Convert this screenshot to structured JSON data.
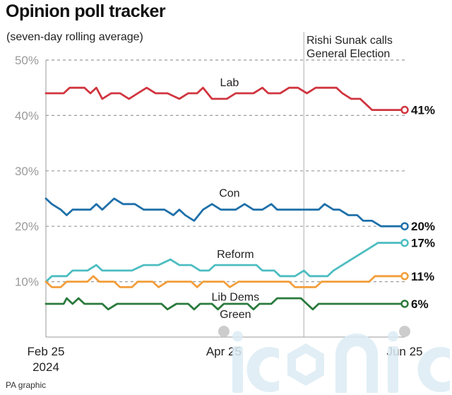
{
  "title": "Opinion poll tracker",
  "subtitle": "(seven-day rolling average)",
  "event_label": [
    "Rishi Sunak calls",
    "General Election"
  ],
  "credit": "PA graphic",
  "watermark": "iconic",
  "colors": {
    "Lab": "#d0353f",
    "Con": "#1f70aa",
    "Reform": "#4dbdc1",
    "Lib Dems": "#f29e3a",
    "Green": "#2a7a3c",
    "grid": "#9a9a9a",
    "ytick": "#9a9a9a",
    "marker": "#cccccc"
  },
  "chart_data": {
    "type": "line",
    "title": "Opinion poll tracker",
    "subtitle": "(seven-day rolling average)",
    "ylim": [
      0,
      50
    ],
    "yticks": [
      10,
      20,
      30,
      40,
      50
    ],
    "ytick_labels": [
      "10%",
      "20%",
      "30%",
      "40%",
      "50%"
    ],
    "x_range": [
      "2024-02-25",
      "2024-06-25"
    ],
    "x_tick_labels": [
      {
        "date": "2024-02-25",
        "lines": [
          "Feb 25",
          "2024"
        ]
      },
      {
        "date": "2024-04-25",
        "lines": [
          "Apr 25"
        ]
      },
      {
        "date": "2024-06-25",
        "lines": [
          "Jun 25"
        ]
      }
    ],
    "event": {
      "date": "2024-05-22",
      "label": "Rishi Sunak calls General Election"
    },
    "grid": true,
    "series": [
      {
        "name": "Lab",
        "final_label": "41%",
        "points": [
          [
            "2024-02-25",
            44
          ],
          [
            "2024-03-02",
            44
          ],
          [
            "2024-03-04",
            45
          ],
          [
            "2024-03-09",
            45
          ],
          [
            "2024-03-11",
            44
          ],
          [
            "2024-03-13",
            45
          ],
          [
            "2024-03-15",
            43
          ],
          [
            "2024-03-18",
            44
          ],
          [
            "2024-03-21",
            44
          ],
          [
            "2024-03-24",
            43
          ],
          [
            "2024-03-27",
            44
          ],
          [
            "2024-03-30",
            45
          ],
          [
            "2024-04-02",
            44
          ],
          [
            "2024-04-06",
            44
          ],
          [
            "2024-04-10",
            43
          ],
          [
            "2024-04-13",
            44
          ],
          [
            "2024-04-16",
            44
          ],
          [
            "2024-04-18",
            45
          ],
          [
            "2024-04-21",
            43
          ],
          [
            "2024-04-26",
            43
          ],
          [
            "2024-04-29",
            44
          ],
          [
            "2024-05-05",
            44
          ],
          [
            "2024-05-08",
            45
          ],
          [
            "2024-05-10",
            44
          ],
          [
            "2024-05-14",
            44
          ],
          [
            "2024-05-17",
            45
          ],
          [
            "2024-05-20",
            45
          ],
          [
            "2024-05-23",
            44
          ],
          [
            "2024-05-26",
            45
          ],
          [
            "2024-06-02",
            45
          ],
          [
            "2024-06-04",
            44
          ],
          [
            "2024-06-07",
            43
          ],
          [
            "2024-06-10",
            43
          ],
          [
            "2024-06-12",
            42
          ],
          [
            "2024-06-14",
            41
          ],
          [
            "2024-06-25",
            41
          ]
        ]
      },
      {
        "name": "Con",
        "final_label": "20%",
        "points": [
          [
            "2024-02-25",
            25
          ],
          [
            "2024-02-27",
            24
          ],
          [
            "2024-03-01",
            23
          ],
          [
            "2024-03-03",
            22
          ],
          [
            "2024-03-05",
            23
          ],
          [
            "2024-03-11",
            23
          ],
          [
            "2024-03-13",
            24
          ],
          [
            "2024-03-15",
            23
          ],
          [
            "2024-03-19",
            25
          ],
          [
            "2024-03-22",
            24
          ],
          [
            "2024-03-26",
            24
          ],
          [
            "2024-03-29",
            23
          ],
          [
            "2024-04-05",
            23
          ],
          [
            "2024-04-08",
            22
          ],
          [
            "2024-04-10",
            23
          ],
          [
            "2024-04-12",
            22
          ],
          [
            "2024-04-15",
            21
          ],
          [
            "2024-04-18",
            23
          ],
          [
            "2024-04-21",
            24
          ],
          [
            "2024-04-24",
            23
          ],
          [
            "2024-04-29",
            23
          ],
          [
            "2024-05-02",
            24
          ],
          [
            "2024-05-05",
            23
          ],
          [
            "2024-05-08",
            23
          ],
          [
            "2024-05-11",
            24
          ],
          [
            "2024-05-13",
            23
          ],
          [
            "2024-05-27",
            23
          ],
          [
            "2024-05-29",
            24
          ],
          [
            "2024-06-01",
            23
          ],
          [
            "2024-06-03",
            23
          ],
          [
            "2024-06-06",
            22
          ],
          [
            "2024-06-09",
            22
          ],
          [
            "2024-06-11",
            21
          ],
          [
            "2024-06-14",
            21
          ],
          [
            "2024-06-17",
            20
          ],
          [
            "2024-06-25",
            20
          ]
        ]
      },
      {
        "name": "Reform",
        "final_label": "17%",
        "points": [
          [
            "2024-02-25",
            10
          ],
          [
            "2024-02-27",
            11
          ],
          [
            "2024-03-03",
            11
          ],
          [
            "2024-03-05",
            12
          ],
          [
            "2024-03-10",
            12
          ],
          [
            "2024-03-13",
            13
          ],
          [
            "2024-03-15",
            12
          ],
          [
            "2024-03-25",
            12
          ],
          [
            "2024-03-29",
            13
          ],
          [
            "2024-04-03",
            13
          ],
          [
            "2024-04-07",
            14
          ],
          [
            "2024-04-10",
            13
          ],
          [
            "2024-04-14",
            13
          ],
          [
            "2024-04-17",
            12
          ],
          [
            "2024-04-20",
            12
          ],
          [
            "2024-04-22",
            13
          ],
          [
            "2024-05-06",
            13
          ],
          [
            "2024-05-08",
            12
          ],
          [
            "2024-05-12",
            12
          ],
          [
            "2024-05-14",
            11
          ],
          [
            "2024-05-19",
            11
          ],
          [
            "2024-05-22",
            12
          ],
          [
            "2024-05-24",
            11
          ],
          [
            "2024-05-30",
            11
          ],
          [
            "2024-06-01",
            12
          ],
          [
            "2024-06-04",
            13
          ],
          [
            "2024-06-07",
            14
          ],
          [
            "2024-06-10",
            15
          ],
          [
            "2024-06-13",
            16
          ],
          [
            "2024-06-16",
            17
          ],
          [
            "2024-06-25",
            17
          ]
        ]
      },
      {
        "name": "Lib Dems",
        "final_label": "11%",
        "points": [
          [
            "2024-02-25",
            10
          ],
          [
            "2024-02-27",
            9
          ],
          [
            "2024-03-01",
            9
          ],
          [
            "2024-03-03",
            10
          ],
          [
            "2024-03-10",
            10
          ],
          [
            "2024-03-12",
            11
          ],
          [
            "2024-03-14",
            10
          ],
          [
            "2024-03-19",
            10
          ],
          [
            "2024-03-21",
            9
          ],
          [
            "2024-03-25",
            9
          ],
          [
            "2024-03-27",
            10
          ],
          [
            "2024-04-01",
            10
          ],
          [
            "2024-04-03",
            9
          ],
          [
            "2024-04-06",
            10
          ],
          [
            "2024-04-14",
            10
          ],
          [
            "2024-04-16",
            9
          ],
          [
            "2024-04-18",
            10
          ],
          [
            "2024-04-25",
            10
          ],
          [
            "2024-04-27",
            9
          ],
          [
            "2024-04-30",
            10
          ],
          [
            "2024-05-17",
            10
          ],
          [
            "2024-05-19",
            9
          ],
          [
            "2024-05-26",
            9
          ],
          [
            "2024-05-28",
            10
          ],
          [
            "2024-06-13",
            10
          ],
          [
            "2024-06-15",
            11
          ],
          [
            "2024-06-25",
            11
          ]
        ]
      },
      {
        "name": "Green",
        "final_label": "6%",
        "points": [
          [
            "2024-02-25",
            6
          ],
          [
            "2024-03-02",
            6
          ],
          [
            "2024-03-03",
            7
          ],
          [
            "2024-03-05",
            6
          ],
          [
            "2024-03-07",
            7
          ],
          [
            "2024-03-09",
            6
          ],
          [
            "2024-03-15",
            6
          ],
          [
            "2024-03-17",
            5
          ],
          [
            "2024-03-20",
            6
          ],
          [
            "2024-04-04",
            6
          ],
          [
            "2024-04-06",
            5
          ],
          [
            "2024-04-09",
            6
          ],
          [
            "2024-04-13",
            6
          ],
          [
            "2024-04-15",
            5
          ],
          [
            "2024-04-17",
            6
          ],
          [
            "2024-04-21",
            6
          ],
          [
            "2024-04-23",
            5
          ],
          [
            "2024-04-25",
            6
          ],
          [
            "2024-05-03",
            6
          ],
          [
            "2024-05-05",
            5
          ],
          [
            "2024-05-07",
            6
          ],
          [
            "2024-05-11",
            6
          ],
          [
            "2024-05-13",
            7
          ],
          [
            "2024-05-21",
            7
          ],
          [
            "2024-05-23",
            6
          ],
          [
            "2024-05-25",
            5
          ],
          [
            "2024-05-27",
            6
          ],
          [
            "2024-06-25",
            6
          ]
        ]
      }
    ]
  }
}
